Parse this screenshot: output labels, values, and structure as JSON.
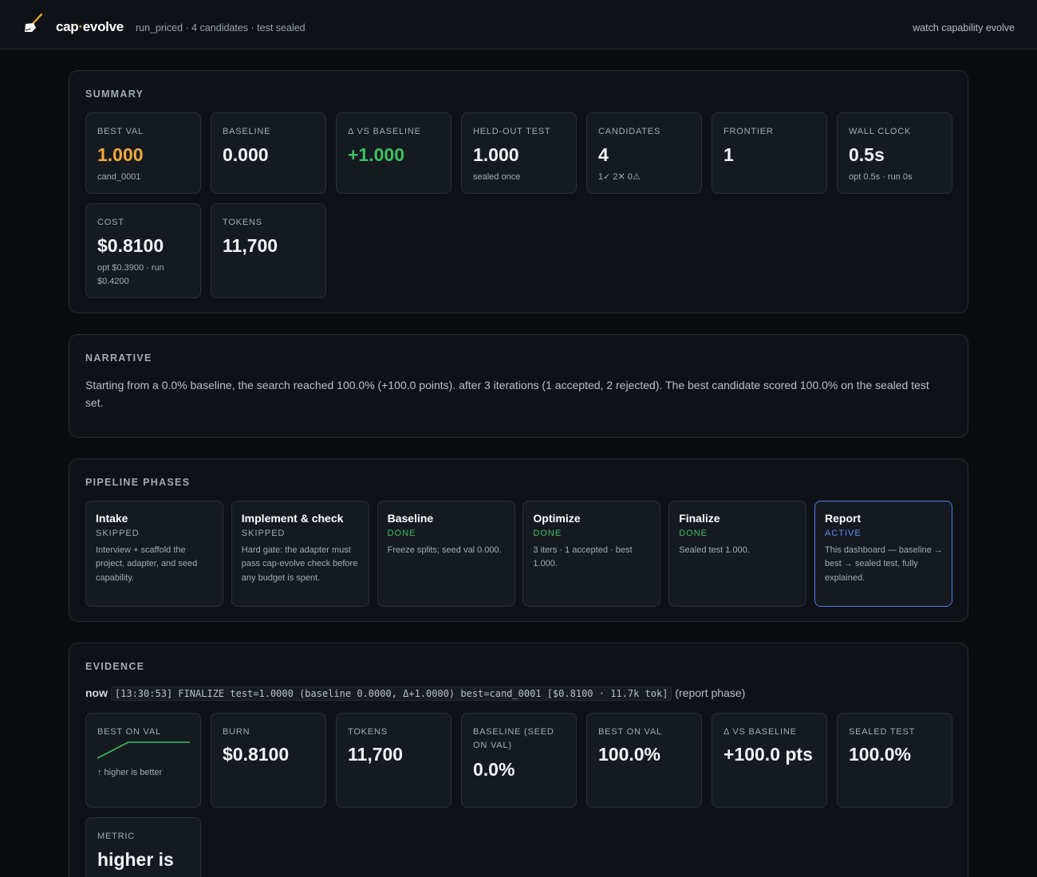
{
  "header": {
    "brand_left": "cap",
    "brand_dot": "·",
    "brand_right": "evolve",
    "run_info": "run_priced · 4 candidates · test sealed",
    "right_link": "watch capability evolve"
  },
  "summary": {
    "title": "SUMMARY",
    "stats": [
      {
        "label": "BEST VAL",
        "value": "1.000",
        "sub": "cand_0001",
        "color": "#f2a93b"
      },
      {
        "label": "BASELINE",
        "value": "0.000",
        "sub": ""
      },
      {
        "label": "Δ VS BASELINE",
        "value": "+1.000",
        "sub": "",
        "color": "#3fbf5f"
      },
      {
        "label": "HELD-OUT TEST",
        "value": "1.000",
        "sub": "sealed once"
      },
      {
        "label": "CANDIDATES",
        "value": "4",
        "sub": "1✓ 2✕ 0⚠"
      },
      {
        "label": "FRONTIER",
        "value": "1",
        "sub": ""
      },
      {
        "label": "WALL CLOCK",
        "value": "0.5s",
        "sub": "opt 0.5s · run 0s"
      },
      {
        "label": "COST",
        "value": "$0.8100",
        "sub": "opt $0.3900 · run $0.4200"
      },
      {
        "label": "TOKENS",
        "value": "11,700",
        "sub": ""
      }
    ]
  },
  "narrative": {
    "title": "NARRATIVE",
    "text": "Starting from a 0.0% baseline, the search reached 100.0% (+100.0 points). after 3 iterations (1 accepted, 2 rejected). The best candidate scored 100.0% on the sealed test set."
  },
  "pipeline": {
    "title": "PIPELINE PHASES",
    "phases": [
      {
        "name": "Intake",
        "status": "SKIPPED",
        "desc": "Interview + scaffold the project, adapter, and seed capability."
      },
      {
        "name": "Implement & check",
        "status": "SKIPPED",
        "desc": "Hard gate: the adapter must pass cap-evolve check before any budget is spent."
      },
      {
        "name": "Baseline",
        "status": "DONE",
        "desc": "Freeze splits; seed val 0.000."
      },
      {
        "name": "Optimize",
        "status": "DONE",
        "desc": "3 iters · 1 accepted · best 1.000."
      },
      {
        "name": "Finalize",
        "status": "DONE",
        "desc": "Sealed test 1.000."
      },
      {
        "name": "Report",
        "status": "ACTIVE",
        "desc": "This dashboard — baseline → best → sealed test, fully explained."
      }
    ],
    "status_colors": {
      "SKIPPED": "#a3abb6",
      "DONE": "#3fbf5f",
      "ACTIVE": "#5b8cf7"
    }
  },
  "evidence": {
    "title": "EVIDENCE",
    "now_label": "now",
    "log_line": "[13:30:53] FINALIZE test=1.0000 (baseline 0.0000, Δ+1.0000) best=cand_0001 [$0.8100 · 11.7k tok]",
    "phase_note": "(report phase)",
    "sparkline_label": "BEST ON VAL",
    "sparkline_note": "↑ higher is better",
    "sparkline_values": [
      0.0,
      1.0,
      1.0,
      1.0
    ],
    "sparkline_color": "#3fbf5f",
    "stats": [
      {
        "label": "BURN",
        "value": "$0.8100"
      },
      {
        "label": "TOKENS",
        "value": "11,700"
      },
      {
        "label": "BASELINE (SEED ON VAL)",
        "value": "0.0%"
      },
      {
        "label": "BEST ON VAL",
        "value": "100.0%"
      },
      {
        "label": "Δ VS BASELINE",
        "value": "+100.0 pts"
      },
      {
        "label": "SEALED TEST",
        "value": "100.0%"
      }
    ],
    "metric": {
      "label": "METRIC",
      "value": "higher is"
    }
  }
}
